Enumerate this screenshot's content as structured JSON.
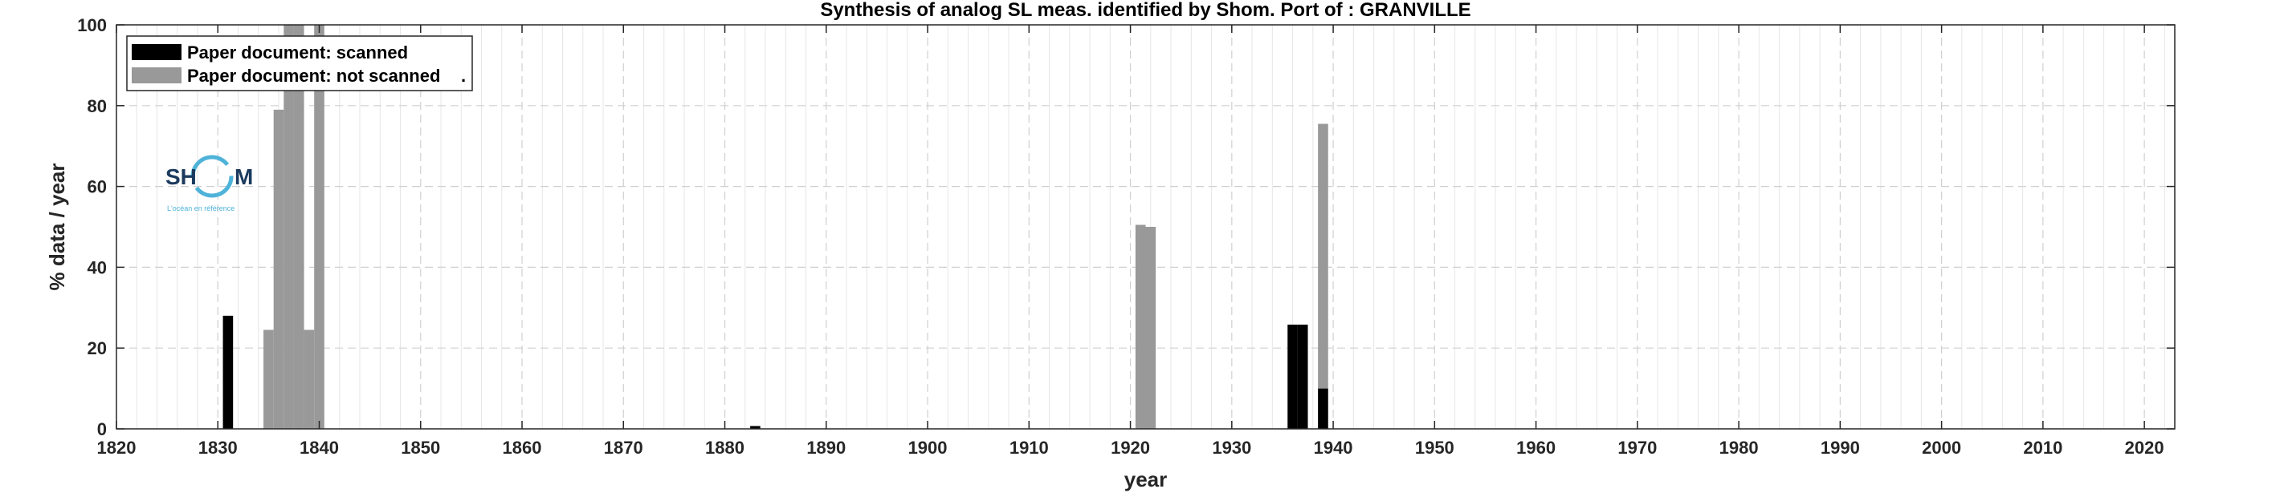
{
  "chart_data": {
    "type": "bar",
    "stacked": true,
    "title": "Synthesis of analog SL meas. identified by Shom. Port of : GRANVILLE",
    "xlabel": "year",
    "ylabel": "% data / year",
    "xlim": [
      1820,
      2023
    ],
    "ylim": [
      0,
      100
    ],
    "xticks": [
      1820,
      1830,
      1840,
      1850,
      1860,
      1870,
      1880,
      1890,
      1900,
      1910,
      1920,
      1930,
      1940,
      1950,
      1960,
      1970,
      1980,
      1990,
      2000,
      2010,
      2020
    ],
    "yticks": [
      0,
      20,
      40,
      60,
      80,
      100
    ],
    "grid": true,
    "legend_position": "top-left",
    "series": [
      {
        "name": "Paper document: scanned",
        "color": "#000000",
        "points": [
          {
            "year": 1831,
            "value": 28
          },
          {
            "year": 1883,
            "value": 0.7
          },
          {
            "year": 1936,
            "value": 25.8
          },
          {
            "year": 1937,
            "value": 25.8
          },
          {
            "year": 1939,
            "value": 10
          }
        ]
      },
      {
        "name": "Paper document: not scanned",
        "color": "#999999",
        "points": [
          {
            "year": 1835,
            "value": 24.5
          },
          {
            "year": 1836,
            "value": 79
          },
          {
            "year": 1837,
            "value": 100
          },
          {
            "year": 1838,
            "value": 100
          },
          {
            "year": 1839,
            "value": 24.5
          },
          {
            "year": 1840,
            "value": 100
          },
          {
            "year": 1921,
            "value": 50.5
          },
          {
            "year": 1922,
            "value": 50
          },
          {
            "year": 1939,
            "value": 65.5
          }
        ]
      }
    ],
    "legend_dot": "."
  },
  "logo": {
    "text_left": "SH",
    "text_right": "M",
    "tagline": "L'océan en référence"
  }
}
